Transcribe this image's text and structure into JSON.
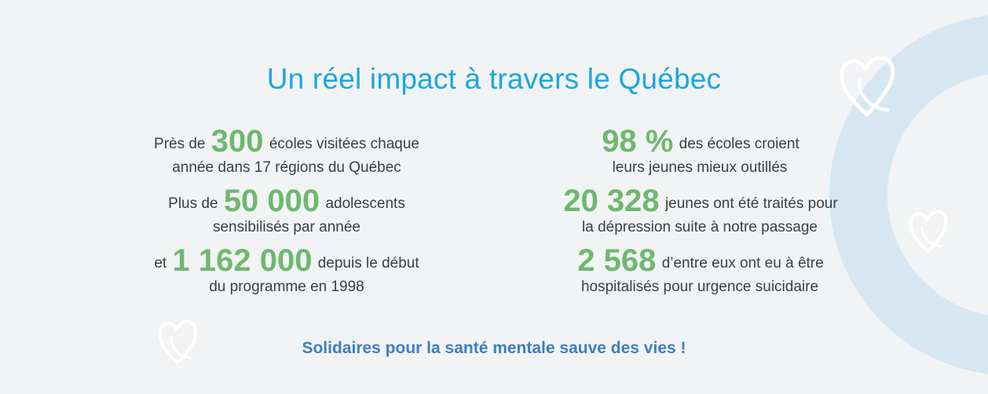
{
  "title": "Un réel impact à travers le Québec",
  "left_column": [
    {
      "prefix": "Près de",
      "number": "300",
      "suffix": "écoles visitées chaque",
      "line2": "année dans 17 régions du Québec"
    },
    {
      "prefix": "Plus de",
      "number": "50 000",
      "suffix": "adolescents",
      "line2": "sensibilisés par année"
    },
    {
      "prefix": "et",
      "number": "1 162 000",
      "suffix": "depuis le début",
      "line2": "du programme en 1998"
    }
  ],
  "right_column": [
    {
      "prefix": "",
      "number": "98 %",
      "suffix": "des écoles croient",
      "line2": "leurs jeunes mieux outillés"
    },
    {
      "prefix": "",
      "number": "20 328",
      "suffix": "jeunes ont été traités pour",
      "line2": "la dépression suite à notre passage"
    },
    {
      "prefix": "",
      "number": "2 568",
      "suffix": "d’entre eux ont eu à être",
      "line2": "hospitalisés pour urgence suicidaire"
    }
  ],
  "footer": "Solidaires pour la santé mentale sauve des vies !",
  "colors": {
    "title": "#1aa7e0",
    "highlight_number": "#6db96e",
    "footer": "#3d7fbf",
    "ring": "#d6e7f2",
    "background": "#f2f3f5"
  },
  "icons": [
    "heart-outline-icon",
    "heart-outline-icon",
    "heart-outline-icon"
  ]
}
